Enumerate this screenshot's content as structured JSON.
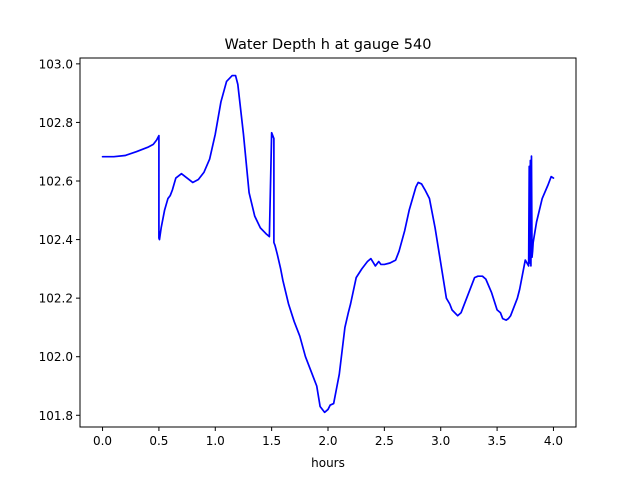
{
  "chart_data": {
    "type": "line",
    "title": "Water Depth h at gauge 540",
    "xlabel": "hours",
    "ylabel": "",
    "xlim": [
      -0.2,
      4.2
    ],
    "ylim": [
      101.76,
      103.02
    ],
    "xticks": [
      0.0,
      0.5,
      1.0,
      1.5,
      2.0,
      2.5,
      3.0,
      3.5,
      4.0
    ],
    "xtick_labels": [
      "0.0",
      "0.5",
      "1.0",
      "1.5",
      "2.0",
      "2.5",
      "3.0",
      "3.5",
      "4.0"
    ],
    "yticks": [
      101.8,
      102.0,
      102.2,
      102.4,
      102.6,
      102.8,
      103.0
    ],
    "ytick_labels": [
      "101.8",
      "102.0",
      "102.2",
      "102.4",
      "102.6",
      "102.8",
      "103.0"
    ],
    "grid": false,
    "legend": "none",
    "series": [
      {
        "color": "#0000ff",
        "x": [
          0.0,
          0.1,
          0.2,
          0.3,
          0.4,
          0.45,
          0.48,
          0.5,
          0.5,
          0.505,
          0.52,
          0.55,
          0.58,
          0.6,
          0.62,
          0.65,
          0.7,
          0.75,
          0.8,
          0.85,
          0.9,
          0.95,
          1.0,
          1.05,
          1.1,
          1.15,
          1.18,
          1.2,
          1.25,
          1.3,
          1.35,
          1.4,
          1.45,
          1.48,
          1.5,
          1.5,
          1.52,
          1.52,
          1.53,
          1.55,
          1.58,
          1.6,
          1.65,
          1.7,
          1.72,
          1.75,
          1.8,
          1.85,
          1.9,
          1.93,
          1.97,
          2.0,
          2.02,
          2.05,
          2.08,
          2.1,
          2.15,
          2.18,
          2.2,
          2.25,
          2.3,
          2.35,
          2.38,
          2.42,
          2.45,
          2.47,
          2.5,
          2.55,
          2.6,
          2.63,
          2.68,
          2.72,
          2.78,
          2.8,
          2.83,
          2.86,
          2.9,
          2.95,
          3.0,
          3.05,
          3.08,
          3.1,
          3.15,
          3.18,
          3.2,
          3.25,
          3.3,
          3.33,
          3.37,
          3.4,
          3.45,
          3.5,
          3.53,
          3.55,
          3.58,
          3.6,
          3.62,
          3.65,
          3.68,
          3.7,
          3.75,
          3.78,
          3.785,
          3.79,
          3.795,
          3.8,
          3.805,
          3.81,
          3.815,
          3.82,
          3.85,
          3.9,
          3.95,
          3.98,
          4.0
        ],
        "y": [
          102.683,
          102.683,
          102.687,
          102.7,
          102.715,
          102.725,
          102.74,
          102.755,
          102.405,
          102.4,
          102.44,
          102.5,
          102.54,
          102.55,
          102.57,
          102.61,
          102.625,
          102.61,
          102.595,
          102.605,
          102.63,
          102.675,
          102.76,
          102.87,
          102.94,
          102.96,
          102.96,
          102.93,
          102.76,
          102.56,
          102.48,
          102.44,
          102.42,
          102.41,
          102.765,
          102.765,
          102.745,
          102.39,
          102.38,
          102.35,
          102.3,
          102.26,
          102.18,
          102.12,
          102.1,
          102.07,
          102.0,
          101.95,
          101.9,
          101.83,
          101.81,
          101.82,
          101.835,
          101.84,
          101.9,
          101.94,
          102.1,
          102.15,
          102.18,
          102.27,
          102.3,
          102.325,
          102.335,
          102.31,
          102.325,
          102.315,
          102.315,
          102.32,
          102.33,
          102.36,
          102.43,
          102.5,
          102.58,
          102.595,
          102.59,
          102.57,
          102.54,
          102.44,
          102.32,
          102.2,
          102.18,
          102.16,
          102.14,
          102.15,
          102.17,
          102.22,
          102.27,
          102.275,
          102.275,
          102.265,
          102.22,
          102.16,
          102.15,
          102.13,
          102.125,
          102.13,
          102.14,
          102.17,
          102.2,
          102.23,
          102.33,
          102.31,
          102.65,
          102.32,
          102.67,
          102.31,
          102.685,
          102.34,
          102.36,
          102.39,
          102.46,
          102.54,
          102.585,
          102.615,
          102.61
        ]
      }
    ]
  }
}
